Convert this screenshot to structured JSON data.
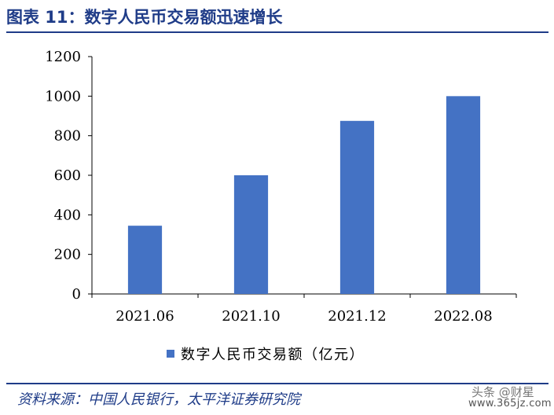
{
  "header": {
    "title": "图表 11：数字人民币交易额迅速增长"
  },
  "footer": {
    "source": "资料来源：中国人民银行，太平洋证券研究院",
    "watermark_top": "头条 @财星",
    "watermark_url": "www.365jz.com"
  },
  "chart_data": {
    "type": "bar",
    "categories": [
      "2021.06",
      "2021.10",
      "2021.12",
      "2022.08"
    ],
    "series": [
      {
        "name": "数字人民币交易额（亿元）",
        "values": [
          345,
          600,
          875,
          1000
        ],
        "color": "#4472c4"
      }
    ],
    "ylim": [
      0,
      1200
    ],
    "yticks": [
      0,
      200,
      400,
      600,
      800,
      1000,
      1200
    ],
    "grid": false,
    "legend": "bottom"
  }
}
